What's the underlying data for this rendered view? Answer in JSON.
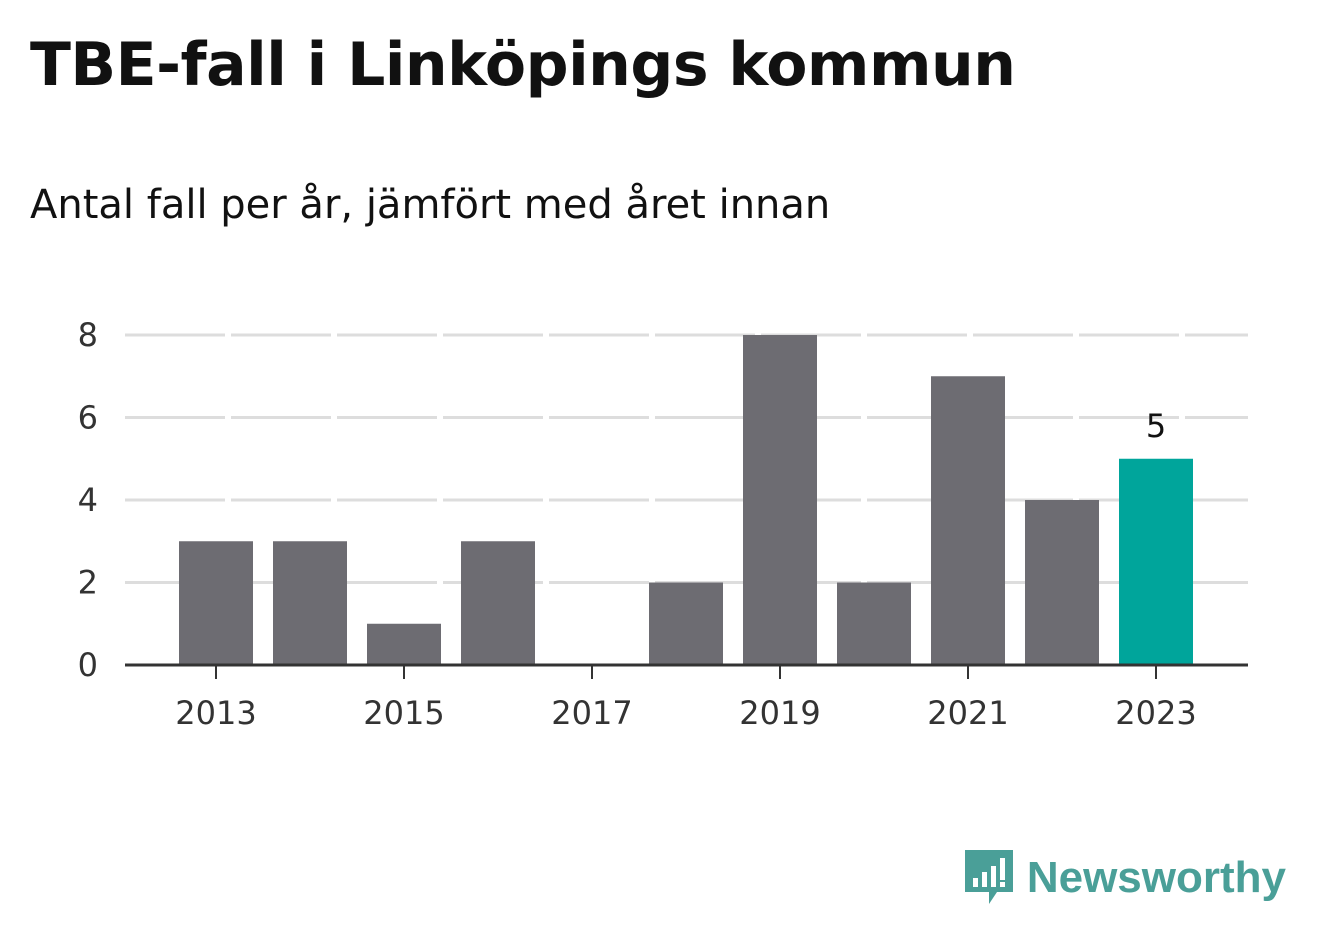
{
  "title": "TBE-fall i Linköpings kommun",
  "subtitle": "Antal fall per år, jämfört med året innan",
  "brand": {
    "name": "Newsworthy",
    "color": "#4a9f98",
    "icon": "newsworthy-logo-icon"
  },
  "colors": {
    "bar": "#6d6c72",
    "highlight": "#00a59b",
    "grid": "#dddddd",
    "axis": "#333333"
  },
  "chart_data": {
    "type": "bar",
    "title": "TBE-fall i Linköpings kommun",
    "subtitle": "Antal fall per år, jämfört med året innan",
    "categories": [
      2013,
      2014,
      2015,
      2016,
      2017,
      2018,
      2019,
      2020,
      2021,
      2022,
      2023
    ],
    "values": [
      3,
      3,
      1,
      3,
      0,
      2,
      8,
      2,
      7,
      4,
      5
    ],
    "highlight_index": 10,
    "data_labels": [
      {
        "index": 10,
        "text": "5"
      }
    ],
    "y_ticks": [
      0,
      2,
      4,
      6,
      8
    ],
    "x_tick_labels": [
      "2013",
      "2015",
      "2017",
      "2019",
      "2021",
      "2023"
    ],
    "ylim": [
      0,
      8
    ],
    "grid": "horizontal-dashed",
    "legend": "none",
    "xlabel": "",
    "ylabel": ""
  }
}
